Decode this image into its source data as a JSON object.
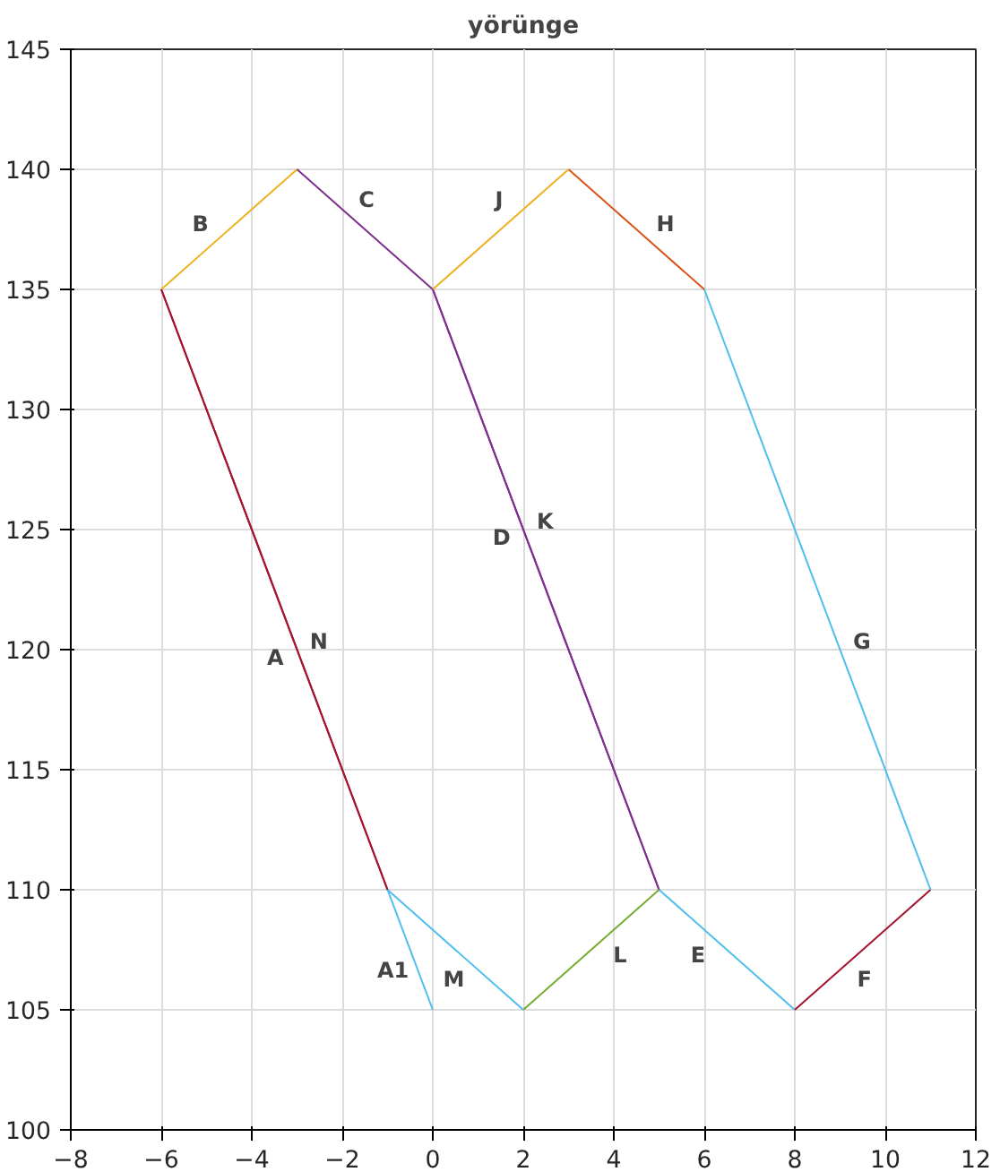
{
  "chart_data": {
    "type": "line",
    "title": "yörünge",
    "xlim": [
      -8,
      12
    ],
    "ylim": [
      100,
      145
    ],
    "xticks": [
      -8,
      -6,
      -4,
      -2,
      0,
      2,
      4,
      6,
      8,
      10,
      12
    ],
    "yticks": [
      100,
      105,
      110,
      115,
      120,
      125,
      130,
      135,
      140,
      145
    ],
    "grid": true,
    "line_style": "solid",
    "series": [
      {
        "name": "A1",
        "color": "#4dbeee",
        "x": [
          0,
          -1
        ],
        "values": [
          105,
          110
        ]
      },
      {
        "name": "A",
        "color": "#a2142f",
        "x": [
          -1,
          -6
        ],
        "values": [
          110,
          135
        ]
      },
      {
        "name": "B",
        "color": "#edb120",
        "x": [
          -6,
          -3
        ],
        "values": [
          135,
          140
        ]
      },
      {
        "name": "C",
        "color": "#7e2f8e",
        "x": [
          -3,
          0
        ],
        "values": [
          140,
          135
        ]
      },
      {
        "name": "D",
        "color": "#7e2f8e",
        "x": [
          0,
          5
        ],
        "values": [
          135,
          110
        ]
      },
      {
        "name": "E",
        "color": "#4dbeee",
        "x": [
          5,
          8
        ],
        "values": [
          110,
          105
        ]
      },
      {
        "name": "F",
        "color": "#a2142f",
        "x": [
          8,
          11
        ],
        "values": [
          105,
          110
        ]
      },
      {
        "name": "G",
        "color": "#4dbeee",
        "x": [
          11,
          6
        ],
        "values": [
          110,
          135
        ]
      },
      {
        "name": "H",
        "color": "#d95319",
        "x": [
          6,
          3
        ],
        "values": [
          135,
          140
        ]
      },
      {
        "name": "J",
        "color": "#edb120",
        "x": [
          3,
          0
        ],
        "values": [
          140,
          135
        ]
      },
      {
        "name": "K",
        "color": "#7e2f8e",
        "x": [
          0,
          5
        ],
        "values": [
          135,
          110
        ]
      },
      {
        "name": "L",
        "color": "#77ac30",
        "x": [
          5,
          2
        ],
        "values": [
          110,
          105
        ]
      },
      {
        "name": "M",
        "color": "#4dbeee",
        "x": [
          2,
          -1
        ],
        "values": [
          105,
          110
        ]
      },
      {
        "name": "N",
        "color": "#a2142f",
        "x": [
          -1,
          -6
        ],
        "values": [
          110,
          135
        ]
      }
    ]
  }
}
